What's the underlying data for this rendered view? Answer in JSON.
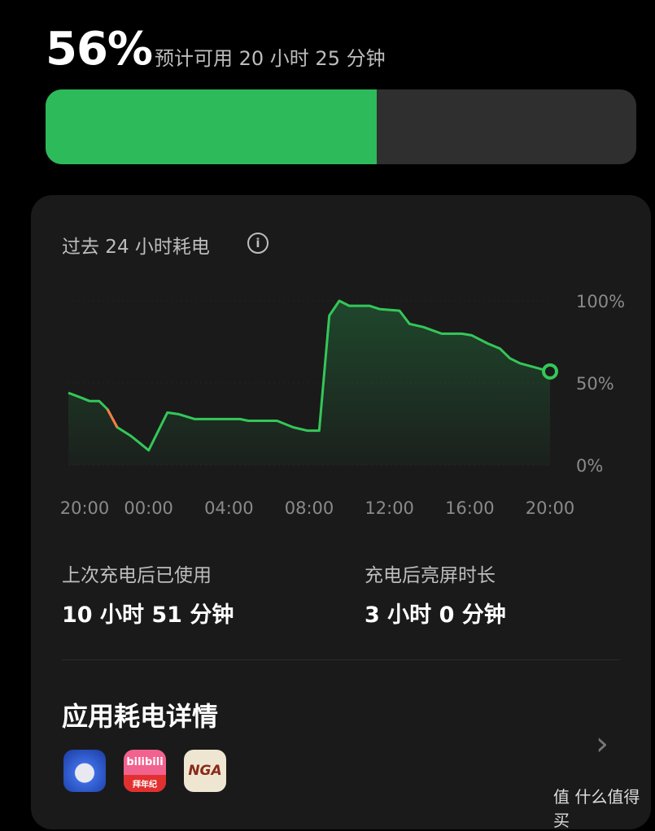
{
  "battery": {
    "percent_label": "56%",
    "percent": 56,
    "estimate": "预计可用 20 小时 25 分钟",
    "fill_color": "#2dba5a"
  },
  "card": {
    "title": "过去 24 小时耗电",
    "info_icon": "i",
    "stats": [
      {
        "label": "上次充电后已使用",
        "value": "10 小时 51 分钟"
      },
      {
        "label": "充电后亮屏时长",
        "value": "3 小时 0 分钟"
      }
    ],
    "apps_title": "应用耗电详情",
    "apps": [
      {
        "name": "game-app",
        "text": ""
      },
      {
        "name": "bilibili",
        "text": "bilibili",
        "subtext": "拜年纪"
      },
      {
        "name": "nga",
        "text": "NGA"
      }
    ]
  },
  "chart_data": {
    "type": "area",
    "x_ticks": [
      "20:00",
      "00:00",
      "04:00",
      "08:00",
      "12:00",
      "16:00",
      "20:00"
    ],
    "y_ticks": [
      "100%",
      "50%",
      "0%"
    ],
    "ylim": [
      0,
      100
    ],
    "line_color": "#34c759",
    "highlight_color": "#ff7a45",
    "highlight_range": [
      "21:57",
      "22:26"
    ],
    "x": [
      "20:00",
      "20:39",
      "21:03",
      "21:32",
      "21:57",
      "22:26",
      "23:05",
      "23:30",
      "00:00",
      "00:56",
      "01:30",
      "02:18",
      "04:33",
      "04:58",
      "06:24",
      "07:12",
      "07:54",
      "08:30",
      "09:00",
      "09:30",
      "10:00",
      "11:00",
      "11:30",
      "12:30",
      "13:00",
      "13:42",
      "14:36",
      "15:36",
      "16:06",
      "16:54",
      "17:30",
      "18:00",
      "18:30",
      "19:06",
      "20:00"
    ],
    "values": [
      44,
      41,
      39,
      39,
      34,
      23,
      18,
      14,
      9,
      32,
      31,
      28,
      28,
      27,
      27,
      23,
      21,
      21,
      91,
      100,
      97,
      97,
      95,
      94,
      86,
      84,
      80,
      80,
      79,
      74,
      71,
      65,
      62,
      60,
      57
    ]
  },
  "watermark": "值 什么值得买"
}
